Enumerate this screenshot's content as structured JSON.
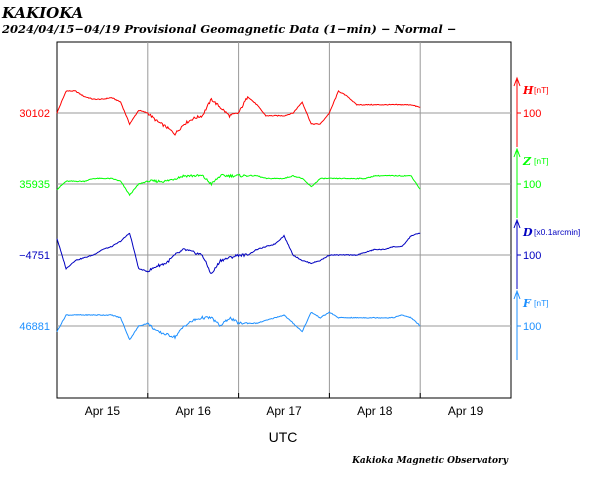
{
  "title": "KAKIOKA",
  "subtitle": "2024/04/15−04/19  Provisional Geomagnetic Data (1−min)  − Normal −",
  "footer": "Kakioka Magnetic Observatory",
  "chart_data": {
    "type": "line",
    "xlabel": "UTC",
    "x_ticks": [
      "Apr 15",
      "Apr 16",
      "Apr 17",
      "Apr 18",
      "Apr 19"
    ],
    "xlim": [
      "2024-04-15T00:00",
      "2024-04-20T00:00"
    ],
    "grid": true,
    "series": [
      {
        "name": "H",
        "unit": "[nT]",
        "color": "#ff0000",
        "base_label": "30102",
        "scale_label": "100",
        "x_days": [
          0,
          0.1,
          0.2,
          0.3,
          0.4,
          0.5,
          0.6,
          0.7,
          0.8,
          0.9,
          1.0,
          1.1,
          1.2,
          1.3,
          1.4,
          1.5,
          1.6,
          1.7,
          1.8,
          1.9,
          2.0,
          2.1,
          2.2,
          2.3,
          2.4,
          2.5,
          2.6,
          2.7,
          2.8,
          2.9,
          3.0,
          3.1,
          3.2,
          3.3,
          3.4,
          3.5,
          3.6,
          3.7,
          3.8,
          3.9,
          4.0
        ],
        "values": [
          0,
          40,
          40,
          30,
          25,
          25,
          28,
          20,
          -20,
          5,
          0,
          -15,
          -25,
          -38,
          -20,
          -10,
          -5,
          25,
          10,
          -5,
          0,
          30,
          15,
          -5,
          -5,
          -5,
          0,
          20,
          -20,
          -20,
          0,
          40,
          30,
          15,
          15,
          15,
          15,
          15,
          15,
          15,
          10
        ]
      },
      {
        "name": "Z",
        "unit": "[nT]",
        "color": "#00ff00",
        "base_label": "35935",
        "scale_label": "100",
        "x_days": [
          0,
          0.1,
          0.2,
          0.3,
          0.4,
          0.5,
          0.6,
          0.7,
          0.8,
          0.9,
          1.0,
          1.1,
          1.2,
          1.3,
          1.4,
          1.5,
          1.6,
          1.7,
          1.8,
          1.9,
          2.0,
          2.1,
          2.2,
          2.3,
          2.4,
          2.5,
          2.6,
          2.7,
          2.8,
          2.9,
          3.0,
          3.1,
          3.2,
          3.3,
          3.4,
          3.5,
          3.6,
          3.7,
          3.8,
          3.9,
          4.0
        ],
        "values": [
          -10,
          5,
          5,
          5,
          10,
          10,
          10,
          5,
          -20,
          0,
          5,
          5,
          5,
          10,
          15,
          15,
          15,
          0,
          15,
          15,
          15,
          15,
          15,
          10,
          10,
          10,
          15,
          10,
          -5,
          10,
          10,
          10,
          10,
          10,
          10,
          15,
          15,
          15,
          15,
          15,
          -10
        ]
      },
      {
        "name": "D",
        "unit": "[x0.1arcmin]",
        "color": "#0000c0",
        "base_label": "−4751",
        "scale_label": "100",
        "x_days": [
          0,
          0.1,
          0.2,
          0.3,
          0.4,
          0.5,
          0.6,
          0.7,
          0.8,
          0.9,
          1.0,
          1.1,
          1.2,
          1.3,
          1.4,
          1.5,
          1.6,
          1.7,
          1.8,
          1.9,
          2.0,
          2.1,
          2.2,
          2.3,
          2.4,
          2.5,
          2.6,
          2.7,
          2.8,
          2.9,
          3.0,
          3.1,
          3.2,
          3.3,
          3.4,
          3.5,
          3.6,
          3.7,
          3.8,
          3.9,
          4.0
        ],
        "values": [
          30,
          -25,
          -10,
          -5,
          0,
          10,
          15,
          25,
          40,
          -25,
          -30,
          -20,
          -15,
          0,
          10,
          5,
          0,
          -35,
          -10,
          -5,
          0,
          0,
          10,
          15,
          20,
          35,
          0,
          -10,
          -15,
          -10,
          0,
          0,
          0,
          0,
          5,
          10,
          10,
          15,
          15,
          35,
          40
        ]
      },
      {
        "name": "F",
        "unit": "[nT]",
        "color": "#1e90ff",
        "base_label": "46881",
        "scale_label": "100",
        "x_days": [
          0,
          0.1,
          0.2,
          0.3,
          0.4,
          0.5,
          0.6,
          0.7,
          0.8,
          0.9,
          1.0,
          1.1,
          1.2,
          1.3,
          1.4,
          1.5,
          1.6,
          1.7,
          1.8,
          1.9,
          2.0,
          2.1,
          2.2,
          2.3,
          2.4,
          2.5,
          2.6,
          2.7,
          2.8,
          2.9,
          3.0,
          3.1,
          3.2,
          3.3,
          3.4,
          3.5,
          3.6,
          3.7,
          3.8,
          3.9,
          4.0
        ],
        "values": [
          -10,
          20,
          20,
          20,
          20,
          20,
          20,
          15,
          -25,
          0,
          5,
          -10,
          -15,
          -20,
          0,
          10,
          15,
          15,
          0,
          15,
          5,
          5,
          5,
          10,
          15,
          20,
          5,
          -10,
          25,
          15,
          25,
          15,
          15,
          15,
          15,
          15,
          15,
          15,
          20,
          15,
          0
        ]
      }
    ]
  }
}
